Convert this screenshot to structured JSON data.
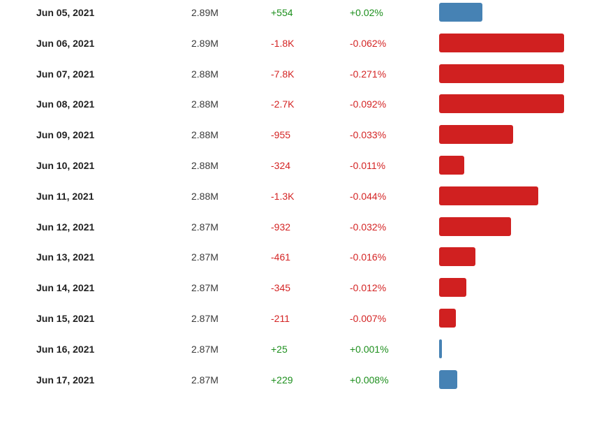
{
  "colors": {
    "positive_text": "#1d8f1d",
    "negative_text": "#d42424",
    "positive_bar": "#4682b4",
    "negative_bar": "#d02020"
  },
  "rows": [
    {
      "date": "Jun 05, 2021",
      "population": "2.89M",
      "change": "+554",
      "percent": "+0.02%",
      "direction": "up",
      "bar_fraction": 0.344
    },
    {
      "date": "Jun 06, 2021",
      "population": "2.89M",
      "change": "-1.8K",
      "percent": "-0.062%",
      "direction": "down",
      "bar_fraction": 1.0
    },
    {
      "date": "Jun 07, 2021",
      "population": "2.88M",
      "change": "-7.8K",
      "percent": "-0.271%",
      "direction": "down",
      "bar_fraction": 1.0
    },
    {
      "date": "Jun 08, 2021",
      "population": "2.88M",
      "change": "-2.7K",
      "percent": "-0.092%",
      "direction": "down",
      "bar_fraction": 1.0
    },
    {
      "date": "Jun 09, 2021",
      "population": "2.88M",
      "change": "-955",
      "percent": "-0.033%",
      "direction": "down",
      "bar_fraction": 0.594
    },
    {
      "date": "Jun 10, 2021",
      "population": "2.88M",
      "change": "-324",
      "percent": "-0.011%",
      "direction": "down",
      "bar_fraction": 0.2
    },
    {
      "date": "Jun 11, 2021",
      "population": "2.88M",
      "change": "-1.3K",
      "percent": "-0.044%",
      "direction": "down",
      "bar_fraction": 0.794
    },
    {
      "date": "Jun 12, 2021",
      "population": "2.87M",
      "change": "-932",
      "percent": "-0.032%",
      "direction": "down",
      "bar_fraction": 0.578
    },
    {
      "date": "Jun 13, 2021",
      "population": "2.87M",
      "change": "-461",
      "percent": "-0.016%",
      "direction": "down",
      "bar_fraction": 0.289
    },
    {
      "date": "Jun 14, 2021",
      "population": "2.87M",
      "change": "-345",
      "percent": "-0.012%",
      "direction": "down",
      "bar_fraction": 0.217
    },
    {
      "date": "Jun 15, 2021",
      "population": "2.87M",
      "change": "-211",
      "percent": "-0.007%",
      "direction": "down",
      "bar_fraction": 0.133
    },
    {
      "date": "Jun 16, 2021",
      "population": "2.87M",
      "change": "+25",
      "percent": "+0.001%",
      "direction": "up",
      "bar_fraction": 0.022
    },
    {
      "date": "Jun 17, 2021",
      "population": "2.87M",
      "change": "+229",
      "percent": "+0.008%",
      "direction": "up",
      "bar_fraction": 0.144
    }
  ]
}
